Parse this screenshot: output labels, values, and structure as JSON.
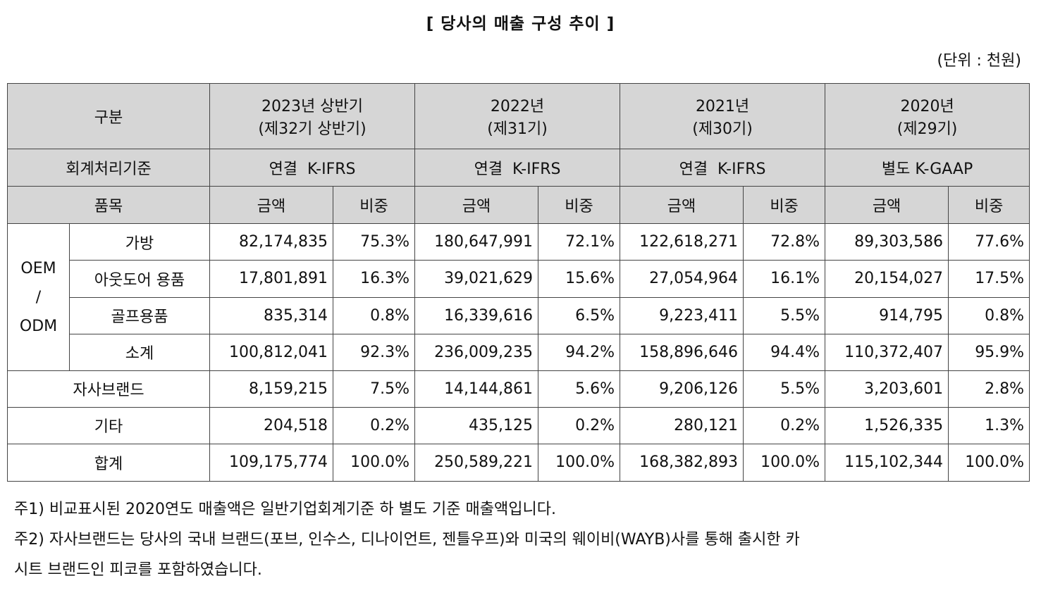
{
  "title": "[ 당사의 매출 구성 추이 ]",
  "unit": "(단위 : 천원)",
  "header": {
    "category": "구분",
    "accounting_label": "회계처리기준",
    "item_label": "품목",
    "periods": [
      {
        "year": "2023년 상반기",
        "term": "(제32기 상반기)",
        "standard": "연결  K-IFRS",
        "amount": "금액",
        "ratio": "비중"
      },
      {
        "year": "2022년",
        "term": "(제31기)",
        "standard": "연결  K-IFRS",
        "amount": "금액",
        "ratio": "비중"
      },
      {
        "year": "2021년",
        "term": "(제30기)",
        "standard": "연결  K-IFRS",
        "amount": "금액",
        "ratio": "비중"
      },
      {
        "year": "2020년",
        "term": "(제29기)",
        "standard": "별도 K-GAAP",
        "amount": "금액",
        "ratio": "비중"
      }
    ]
  },
  "group": {
    "line1": "OEM",
    "line2": "/",
    "line3": "ODM"
  },
  "rows": [
    {
      "label": "가방",
      "values": [
        "82,174,835",
        "75.3%",
        "180,647,991",
        "72.1%",
        "122,618,271",
        "72.8%",
        "89,303,586",
        "77.6%"
      ]
    },
    {
      "label": "아웃도어 용품",
      "values": [
        "17,801,891",
        "16.3%",
        "39,021,629",
        "15.6%",
        "27,054,964",
        "16.1%",
        "20,154,027",
        "17.5%"
      ]
    },
    {
      "label": "골프용품",
      "values": [
        "835,314",
        "0.8%",
        "16,339,616",
        "6.5%",
        "9,223,411",
        "5.5%",
        "914,795",
        "0.8%"
      ]
    },
    {
      "label": "소계",
      "values": [
        "100,812,041",
        "92.3%",
        "236,009,235",
        "94.2%",
        "158,896,646",
        "94.4%",
        "110,372,407",
        "95.9%"
      ]
    },
    {
      "label": "자사브랜드",
      "values": [
        "8,159,215",
        "7.5%",
        "14,144,861",
        "5.6%",
        "9,206,126",
        "5.5%",
        "3,203,601",
        "2.8%"
      ]
    },
    {
      "label": "기타",
      "values": [
        "204,518",
        "0.2%",
        "435,125",
        "0.2%",
        "280,121",
        "0.2%",
        "1,526,335",
        "1.3%"
      ]
    },
    {
      "label": "합계",
      "values": [
        "109,175,774",
        "100.0%",
        "250,589,221",
        "100.0%",
        "168,382,893",
        "100.0%",
        "115,102,344",
        "100.0%"
      ]
    }
  ],
  "notes": [
    "주1) 비교표시된 2020연도 매출액은 일반기업회계기준 하 별도 기준 매출액입니다.",
    "주2) 자사브랜드는 당사의 국내 브랜드(포브, 인수스, 디나이언트, 젠틀우프)와 미국의 웨이비(WAYB)사를 통해 출시한 카",
    "시트 브랜드인 피코를 포함하였습니다."
  ]
}
